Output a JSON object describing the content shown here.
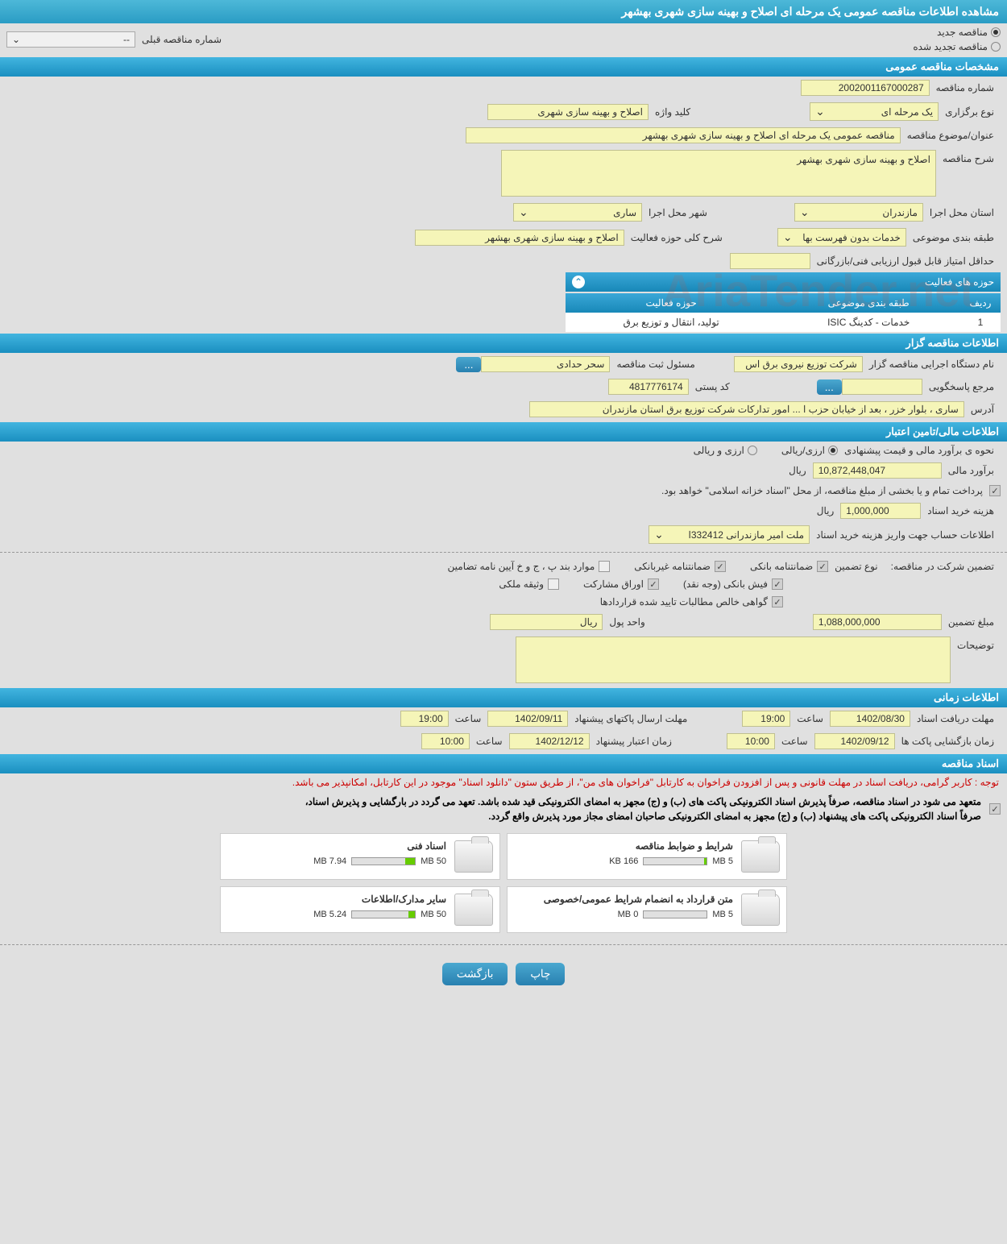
{
  "page_title": "مشاهده اطلاعات مناقصه عمومی یک مرحله ای اصلاح و بهینه سازی شهری بهشهر",
  "top_radios": {
    "new": "مناقصه جدید",
    "renewed": "مناقصه تجدید شده",
    "prev_number_label": "شماره مناقصه قبلی",
    "prev_number": "--"
  },
  "sections": {
    "general": "مشخصات مناقصه عمومی",
    "executor": "اطلاعات مناقصه گزار",
    "financial": "اطلاعات مالی/تامین اعتبار",
    "time": "اطلاعات زمانی",
    "docs": "اسناد مناقصه"
  },
  "general": {
    "tender_number_label": "شماره مناقصه",
    "tender_number": "2002001167000287",
    "type_label": "نوع برگزاری",
    "type": "یک مرحله ای",
    "keyword_label": "کلید واژه",
    "keyword": "اصلاح و بهینه سازی شهری",
    "subject_label": "عنوان/موضوع مناقصه",
    "subject": "مناقصه عمومی یک مرحله ای اصلاح و بهینه سازی شهری   بهشهر",
    "desc_label": "شرح مناقصه",
    "desc": "اصلاح و بهینه سازی شهری   بهشهر",
    "province_label": "استان محل اجرا",
    "province": "مازندران",
    "city_label": "شهر محل اجرا",
    "city": "ساری",
    "category_label": "طبقه بندی موضوعی",
    "category": "خدمات بدون فهرست بها",
    "scope_label": "شرح کلی حوزه فعالیت",
    "scope": "اصلاح و بهینه سازی شهری   بهشهر",
    "min_score_label": "حداقل امتیاز قابل قبول ارزیابی فنی/بازرگانی",
    "activity_areas_title": "حوزه های فعالیت",
    "activity_table": {
      "headers": [
        "ردیف",
        "طبقه بندی موضوعی",
        "حوزه فعالیت"
      ],
      "rows": [
        [
          "1",
          "خدمات - کدینگ ISIC",
          "تولید، انتقال و توزیع برق"
        ]
      ]
    }
  },
  "executor": {
    "name_label": "نام دستگاه اجرایی مناقصه گزار",
    "name": "شرکت توزیع نیروی برق اس",
    "reg_person_label": "مسئول ثبت مناقصه",
    "reg_person": "سحر حدادی",
    "responder_label": "مرجع پاسخگویی",
    "postal_label": "کد پستی",
    "postal": "4817776174",
    "address_label": "آدرس",
    "address": "ساری ، بلوار خزر ، بعد از خیابان حزب ا ... امور تدارکات شرکت توزیع برق استان مازندران"
  },
  "financial": {
    "est_method_label": "نحوه ی برآورد مالی و قیمت پیشنهادی",
    "radio_arzi_riali": "ارزی/ریالی",
    "radio_arzi_va_riali": "ارزی و ریالی",
    "est_label": "برآورد مالی",
    "est_value": "10,872,448,047",
    "est_unit": "ریال",
    "treasury_note": "پرداخت تمام و یا بخشی از مبلغ مناقصه، از محل \"اسناد خزانه اسلامی\" خواهد بود.",
    "doc_cost_label": "هزینه خرید اسناد",
    "doc_cost": "1,000,000",
    "doc_cost_unit": "ریال",
    "account_label": "اطلاعات حساب جهت واریز هزینه خرید اسناد",
    "account": "ملت امیر مازندرانی 332412ا",
    "guarantee_in_label": "تضمین شرکت در مناقصه:",
    "guarantee_type_label": "نوع تضمین",
    "cb_bank_guarantee": "ضمانتنامه بانکی",
    "cb_nonbank_guarantee": "ضمانتنامه غیربانکی",
    "cb_other_cases": "موارد بند پ ، ج و خ آیین نامه تضامین",
    "cb_bank_slip": "فیش بانکی (وجه نقد)",
    "cb_partnership": "اوراق مشارکت",
    "cb_property": "وثیقه ملکی",
    "cb_certified": "گواهی خالص مطالبات تایید شده قراردادها",
    "guarantee_amount_label": "مبلغ تضمین",
    "guarantee_amount": "1,088,000,000",
    "currency_unit_label": "واحد پول",
    "currency_unit": "ریال",
    "notes_label": "توضیحات"
  },
  "time": {
    "receive_label": "مهلت دریافت اسناد",
    "receive_date": "1402/08/30",
    "receive_time": "19:00",
    "submit_label": "مهلت ارسال پاکتهای پیشنهاد",
    "submit_date": "1402/09/11",
    "submit_time": "19:00",
    "open_label": "زمان بازگشایی پاکت ها",
    "open_date": "1402/09/12",
    "open_time": "10:00",
    "validity_label": "زمان اعتبار پیشنهاد",
    "validity_date": "1402/12/12",
    "validity_time": "10:00",
    "time_word": "ساعت"
  },
  "docs": {
    "red_note": "توجه : کاربر گرامی، دریافت اسناد در مهلت قانونی و پس از افزودن فراخوان به کارتابل \"فراخوان های من\"، از طریق ستون \"دانلود اسناد\" موجود در این کارتابل، امکانپذیر می باشد.",
    "black_note1": "متعهد می شود در اسناد مناقصه، صرفاً پذیرش اسناد الکترونیکی پاکت های (ب) و (ج) مجهز به امضای الکترونیکی قید شده باشد. تعهد می گردد در بارگشایی و پذیرش اسناد،",
    "black_note2": "صرفاً اسناد الکترونیکی پاکت های پیشنهاد (ب) و (ج) مجهز به امضای الکترونیکی صاحبان امضای مجاز مورد پذیرش واقع گردد.",
    "files": [
      {
        "title": "شرایط و ضوابط مناقصه",
        "used": "166 KB",
        "cap": "5 MB",
        "pct": 4
      },
      {
        "title": "اسناد فنی",
        "used": "7.94 MB",
        "cap": "50 MB",
        "pct": 16
      },
      {
        "title": "متن قرارداد به انضمام شرایط عمومی/خصوصی",
        "used": "0 MB",
        "cap": "5 MB",
        "pct": 0
      },
      {
        "title": "سایر مدارک/اطلاعات",
        "used": "5.24 MB",
        "cap": "50 MB",
        "pct": 11
      }
    ]
  },
  "buttons": {
    "print": "چاپ",
    "back": "بازگشت",
    "more": "..."
  },
  "colors": {
    "header_gradient_top": "#4db8d8",
    "header_gradient_bottom": "#1a8fc0",
    "yellow_bg": "#f5f5b8",
    "page_bg": "#e0e0e0",
    "red": "#cc0000",
    "bar_fill": "#66cc00"
  },
  "watermark": "AriaTender.net"
}
